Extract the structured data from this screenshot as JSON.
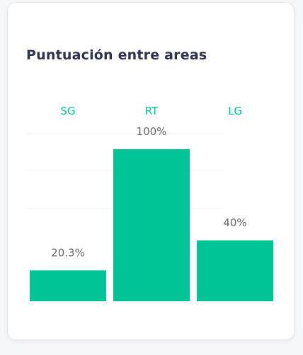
{
  "card": {
    "title": "Puntuación entre areas"
  },
  "chart_data": {
    "type": "bar",
    "categories": [
      "SG",
      "RT",
      "LG"
    ],
    "values": [
      20.3,
      100,
      40
    ],
    "value_labels": [
      "20.3%",
      "100%",
      "40%"
    ],
    "ylim": [
      0,
      100
    ],
    "grid": true,
    "bar_color": "#00c495",
    "category_label_color": "#00c495",
    "value_label_color": "#666666",
    "category_label_position": "top"
  }
}
